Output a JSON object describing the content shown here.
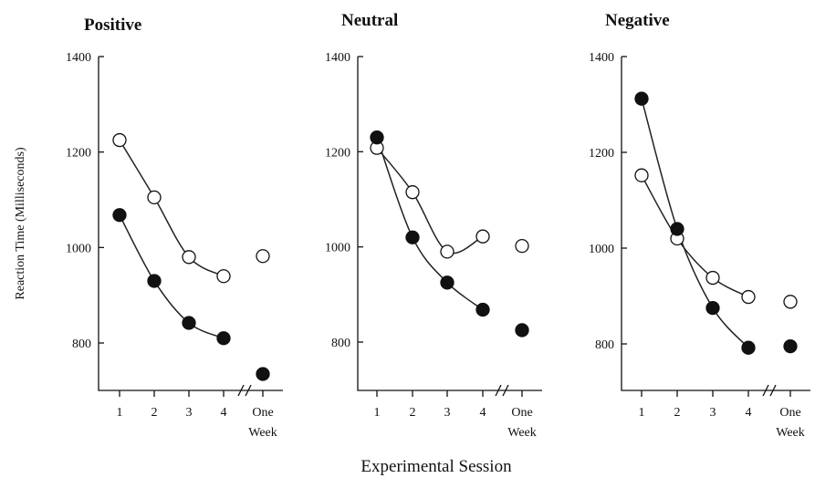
{
  "chart_data": [
    {
      "type": "scatter",
      "title": "Positive",
      "ylabel": "Reaction Time (Milliseconds)",
      "ylim": [
        700,
        1400
      ],
      "yticks": [
        "1400",
        "1200",
        "1000",
        "800"
      ],
      "categories": [
        "1",
        "2",
        "3",
        "4",
        "One Week"
      ],
      "series": [
        {
          "marker": "open",
          "values": [
            1225,
            1105,
            980,
            940,
            982
          ]
        },
        {
          "marker": "filled",
          "values": [
            1068,
            930,
            842,
            810,
            735
          ]
        }
      ]
    },
    {
      "type": "scatter",
      "title": "Neutral",
      "ylim": [
        700,
        1400
      ],
      "yticks": [
        "1400",
        "1200",
        "1000",
        "800"
      ],
      "categories": [
        "1",
        "2",
        "3",
        "4",
        "One Week"
      ],
      "series": [
        {
          "marker": "open",
          "values": [
            1208,
            1115,
            990,
            1022,
            1002
          ]
        },
        {
          "marker": "filled",
          "values": [
            1230,
            1020,
            925,
            868,
            825
          ]
        }
      ]
    },
    {
      "type": "scatter",
      "title": "Negative",
      "ylim": [
        700,
        1400
      ],
      "yticks": [
        "1400",
        "1200",
        "1000",
        "800"
      ],
      "categories": [
        "1",
        "2",
        "3",
        "4",
        "One Week"
      ],
      "series": [
        {
          "marker": "open",
          "values": [
            1152,
            1020,
            938,
            898,
            888
          ]
        },
        {
          "marker": "filled",
          "values": [
            1312,
            1040,
            875,
            792,
            795
          ]
        }
      ]
    }
  ],
  "xlabel": "Experimental Session",
  "colors": {
    "ink": "#111111",
    "open_fill": "#ffffff",
    "filled_fill": "#111111"
  }
}
